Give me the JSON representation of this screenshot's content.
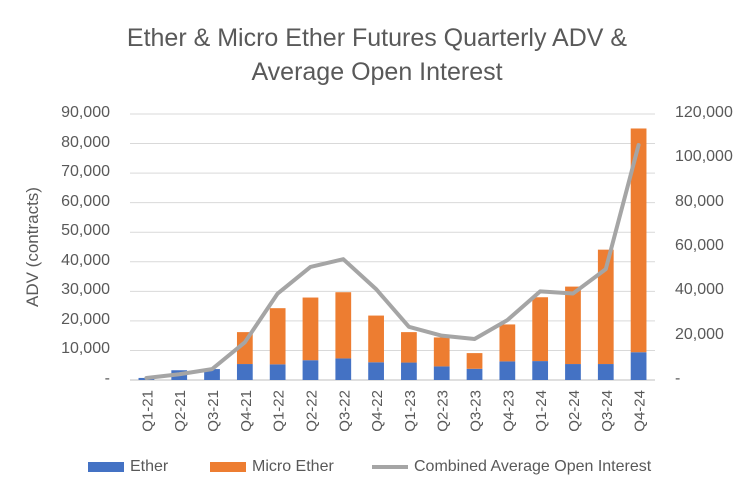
{
  "chart_data": {
    "type": "bar",
    "title_lines": [
      "Ether & Micro Ether Futures Quarterly ADV &",
      "Average Open Interest"
    ],
    "ylabel": "ADV (contracts)",
    "xlabel": "",
    "ylim": [
      0,
      90000
    ],
    "y2lim": [
      0,
      120000
    ],
    "yticks": [
      "-",
      "10,000",
      "20,000",
      "30,000",
      "40,000",
      "50,000",
      "60,000",
      "70,000",
      "80,000",
      "90,000"
    ],
    "y2ticks": [
      "-",
      "20,000",
      "40,000",
      "60,000",
      "80,000",
      "100,000",
      "120,000"
    ],
    "categories": [
      "Q1-21",
      "Q2-21",
      "Q3-21",
      "Q4-21",
      "Q1-22",
      "Q2-22",
      "Q3-22",
      "Q4-22",
      "Q1-23",
      "Q2-23",
      "Q3-23",
      "Q4-23",
      "Q1-24",
      "Q2-24",
      "Q3-24",
      "Q4-24"
    ],
    "series": [
      {
        "name": "Ether",
        "type": "bar",
        "stack": "adv",
        "axis": "left",
        "color": "#4472C4",
        "values": [
          700,
          3300,
          3700,
          5400,
          5300,
          6700,
          7300,
          6000,
          5900,
          4600,
          3800,
          6300,
          6400,
          5400,
          5400,
          9400
        ]
      },
      {
        "name": "Micro Ether",
        "type": "bar",
        "stack": "adv",
        "axis": "left",
        "color": "#ED7D31",
        "values": [
          0,
          0,
          0,
          10800,
          19000,
          21200,
          22400,
          15800,
          10300,
          9800,
          5300,
          12500,
          21600,
          26200,
          38700,
          75700
        ]
      },
      {
        "name": "Combined Average Open Interest",
        "type": "line",
        "axis": "right",
        "color": "#A5A5A5",
        "values": [
          900,
          2600,
          4900,
          17000,
          39000,
          51000,
          54500,
          41000,
          24000,
          20000,
          18500,
          27000,
          40000,
          39000,
          50000,
          106000
        ]
      }
    ],
    "legend_position": "bottom",
    "grid": true
  }
}
